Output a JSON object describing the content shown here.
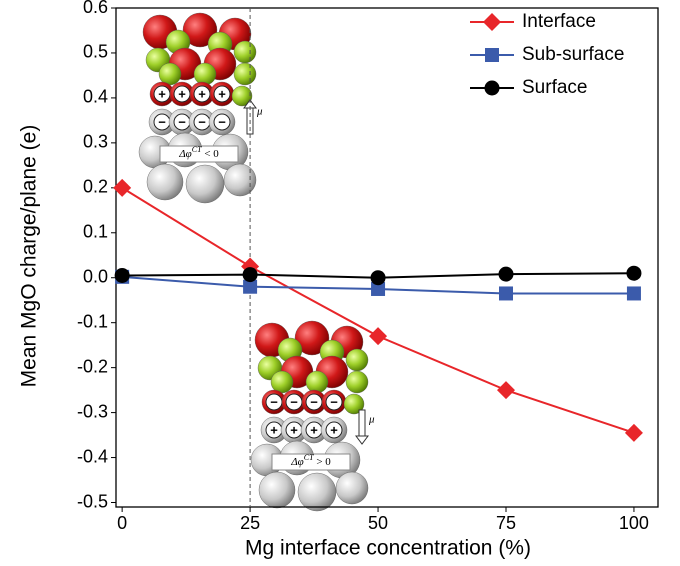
{
  "chart_data": {
    "type": "line",
    "xlabel": "Mg interface concentration (%)",
    "ylabel": "Mean MgO charge/plane (e)",
    "x": [
      0,
      25,
      50,
      75,
      100
    ],
    "series": [
      {
        "name": "Interface",
        "color": "#e8262a",
        "marker": "diamond",
        "values": [
          0.2,
          0.025,
          -0.13,
          -0.25,
          -0.345
        ]
      },
      {
        "name": "Sub-surface",
        "color": "#3b5bab",
        "marker": "square",
        "values": [
          0.002,
          -0.02,
          -0.025,
          -0.035,
          -0.035
        ]
      },
      {
        "name": "Surface",
        "color": "#000000",
        "marker": "circle",
        "values": [
          0.005,
          0.007,
          0.0,
          0.008,
          0.01
        ]
      }
    ],
    "xlim": [
      -1.2,
      104.7
    ],
    "xticks": [
      0,
      25,
      50,
      75,
      100
    ],
    "ylim": [
      -0.51,
      0.6
    ],
    "yticks": [
      -0.5,
      -0.4,
      -0.3,
      -0.2,
      -0.1,
      {
        "value": 0,
        "label": "0.0"
      },
      0.1,
      0.2,
      0.3,
      0.4,
      0.5,
      0.6
    ],
    "vline": 25,
    "legend": "upper right",
    "insets": [
      {
        "symbol": "Δφ",
        "superscript": "CT",
        "relation": " < 0",
        "dipole": "μ",
        "upper_charges": [
          "+",
          "+",
          "+",
          "+"
        ],
        "lower_charges": [
          "−",
          "−",
          "−",
          "−"
        ]
      },
      {
        "symbol": "Δφ",
        "superscript": "CT",
        "relation": " > 0",
        "dipole": "μ",
        "upper_charges": [
          "−",
          "−",
          "−",
          "−"
        ],
        "lower_charges": [
          "+",
          "+",
          "+",
          "+"
        ]
      }
    ]
  }
}
